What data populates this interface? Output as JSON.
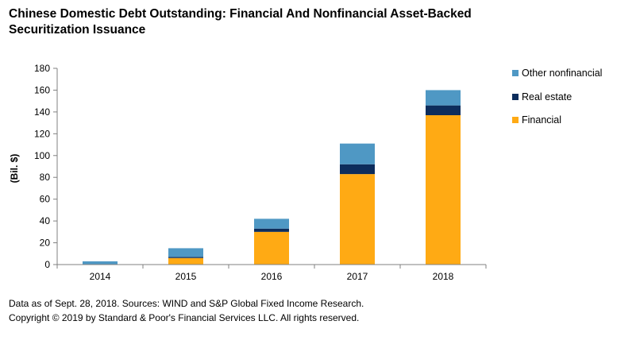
{
  "title_line1": "Chinese Domestic Debt Outstanding: Financial And Nonfinancial Asset-Backed",
  "title_line2": "Securitization Issuance",
  "footnote_source": "Data as of Sept. 28, 2018. Sources: WIND and S&P Global Fixed Income Research.",
  "footnote_copyright": "Copyright © 2019 by Standard & Poor's Financial Services LLC. All rights reserved.",
  "chart_data": {
    "type": "bar",
    "stacked": true,
    "title": "Chinese Domestic Debt Outstanding: Financial And Nonfinancial Asset-Backed Securitization Issuance",
    "xlabel": "",
    "ylabel": "(Bil. $)",
    "ylim": [
      0,
      180
    ],
    "yticks": [
      0,
      20,
      40,
      60,
      80,
      100,
      120,
      140,
      160,
      180
    ],
    "grid": false,
    "legend_position": "right",
    "categories": [
      "2014",
      "2015",
      "2016",
      "2017",
      "2018"
    ],
    "series": [
      {
        "name": "Financial",
        "color": "#FFAA14",
        "values": [
          0,
          6,
          30,
          83,
          137
        ]
      },
      {
        "name": "Real estate",
        "color": "#0D2D5C",
        "values": [
          0,
          1,
          3,
          9,
          9
        ]
      },
      {
        "name": "Other nonfinancial",
        "color": "#4F98C4",
        "values": [
          3,
          8,
          9,
          19,
          14
        ]
      }
    ],
    "legend_order": [
      "Other nonfinancial",
      "Real estate",
      "Financial"
    ]
  }
}
